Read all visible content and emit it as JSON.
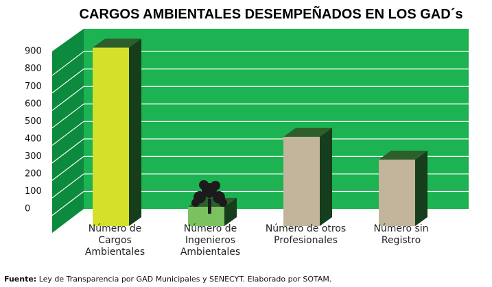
{
  "chart_data": {
    "type": "bar3d",
    "title": "CARGOS AMBIENTALES DESEMPEÑADOS EN LOS GAD´s",
    "categories": [
      "Número de Cargos Ambientales",
      "Número de Ingenieros Ambientales",
      "Número de otros Profesionales",
      "Número sin Registro"
    ],
    "values": [
      1020,
      110,
      510,
      380
    ],
    "colors": [
      "#d5e02a",
      "#7cc160",
      "#c2b59b",
      "#c2b59b"
    ],
    "ylim": [
      0,
      1030
    ],
    "yticks": [
      0,
      100,
      200,
      300,
      400,
      500,
      600,
      700,
      800,
      900
    ],
    "grid": true
  },
  "footer": {
    "label": "Fuente:",
    "text": " Ley de Transparencia por GAD Municipales y SENECYT. Elaborado por SOTAM."
  }
}
